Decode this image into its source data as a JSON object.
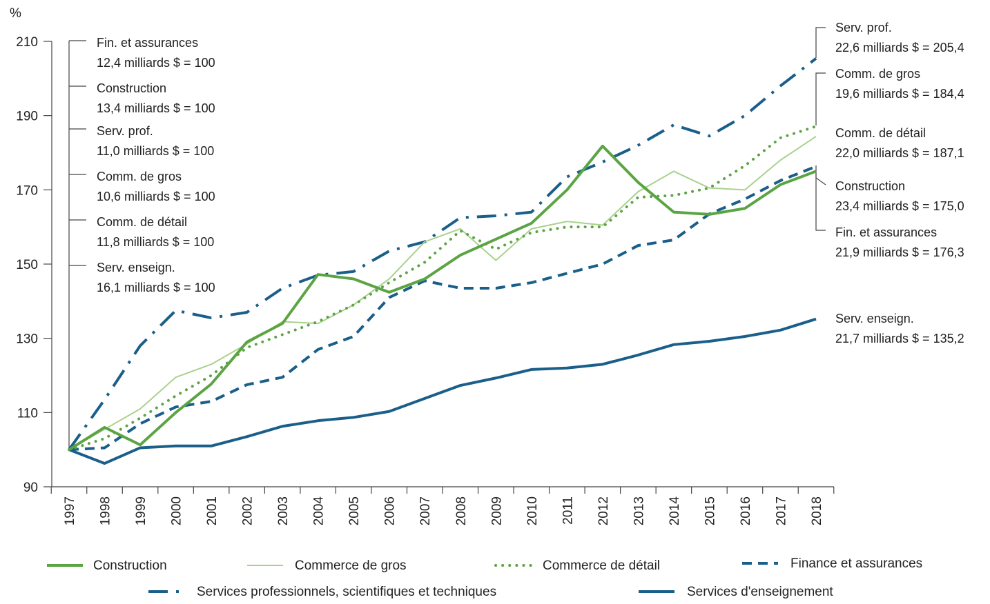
{
  "chart_data": {
    "type": "line",
    "y_label": "%",
    "categories": [
      "1997",
      "1998",
      "1999",
      "2000",
      "2001",
      "2002",
      "2003",
      "2004",
      "2005",
      "2006",
      "2007",
      "2008",
      "2009",
      "2010",
      "2011",
      "2012",
      "2013",
      "2014",
      "2015",
      "2016",
      "2017",
      "2018"
    ],
    "ylim": [
      90,
      210
    ],
    "yticks": [
      90,
      110,
      130,
      150,
      170,
      190,
      210
    ],
    "series": [
      {
        "name": "Construction",
        "color": "#5ba443",
        "style": "solid",
        "width": 4,
        "values": [
          100,
          106,
          101.3,
          110,
          117.7,
          129,
          134,
          147.2,
          146,
          142.4,
          146,
          152.4,
          156.7,
          161,
          170,
          181.8,
          172,
          164,
          163.4,
          165,
          171.4,
          175.0
        ]
      },
      {
        "name": "Commerce de gros",
        "color": "#a9d18e",
        "style": "solid",
        "width": 2,
        "values": [
          100,
          105.5,
          111,
          119.5,
          123,
          128.5,
          134.5,
          134,
          139,
          146,
          156,
          159.5,
          151,
          159.5,
          161.5,
          160.5,
          169.5,
          175,
          170.5,
          170,
          178,
          184.4
        ]
      },
      {
        "name": "Commerce de détail",
        "color": "#5ba443",
        "style": "dotted",
        "width": 4,
        "values": [
          100,
          103,
          108.5,
          114.5,
          120,
          127.5,
          131,
          134.5,
          139,
          145,
          150.5,
          159,
          154,
          158.5,
          160,
          160,
          168,
          168.5,
          170.5,
          176.5,
          184,
          187.1
        ]
      },
      {
        "name": "Finance et assurances",
        "color": "#1a5f8a",
        "style": "dashed",
        "width": 4,
        "values": [
          100,
          100.5,
          107,
          111.5,
          113,
          117.5,
          119.5,
          127,
          130.5,
          141,
          145.5,
          143.5,
          143.5,
          145,
          147.5,
          150,
          155,
          156.5,
          163.5,
          167.5,
          172.5,
          176.3
        ]
      },
      {
        "name": "Services professionnels, scientifiques et techniques",
        "color": "#1a5f8a",
        "style": "dashdot",
        "width": 4,
        "values": [
          100,
          113.5,
          128,
          137.5,
          135.5,
          137,
          143.5,
          147,
          148,
          153.5,
          156,
          162.5,
          163,
          164,
          173.5,
          177.5,
          182,
          187.5,
          184.5,
          190,
          198,
          205.4
        ]
      },
      {
        "name": "Services d'enseignement",
        "color": "#1a5f8a",
        "style": "solid",
        "width": 4,
        "values": [
          100,
          96.3,
          100.5,
          101,
          101,
          103.5,
          106.3,
          107.8,
          108.7,
          110.3,
          113.8,
          117.3,
          119.3,
          121.6,
          122,
          123,
          125.5,
          128.3,
          129.2,
          130.5,
          132.2,
          135.2
        ]
      }
    ],
    "annotations_left": [
      [
        "Fin. et assurances",
        "12,4 milliards $ = 100"
      ],
      [
        "Construction",
        "13,4 milliards $ = 100"
      ],
      [
        "Serv. prof.",
        "11,0 milliards $ = 100"
      ],
      [
        "Comm. de gros",
        "10,6 milliards $ = 100"
      ],
      [
        "Comm. de détail",
        "11,8 milliards $ = 100"
      ],
      [
        "Serv. enseign.",
        "16,1 milliards $ = 100"
      ]
    ],
    "annotations_right": [
      [
        "Serv. prof.",
        "22,6 milliards $ =  205,4"
      ],
      [
        "Comm. de gros",
        "19,6 milliards $ = 184,4"
      ],
      [
        "Comm. de détail",
        "22,0 milliards $ = 187,1"
      ],
      [
        "Construction",
        "23,4 milliards $ = 175,0"
      ],
      [
        "Fin. et assurances",
        "21,9 milliards $ = 176,3"
      ],
      [
        "Serv. enseign.",
        "21,7 milliards $ = 135,2"
      ]
    ]
  }
}
